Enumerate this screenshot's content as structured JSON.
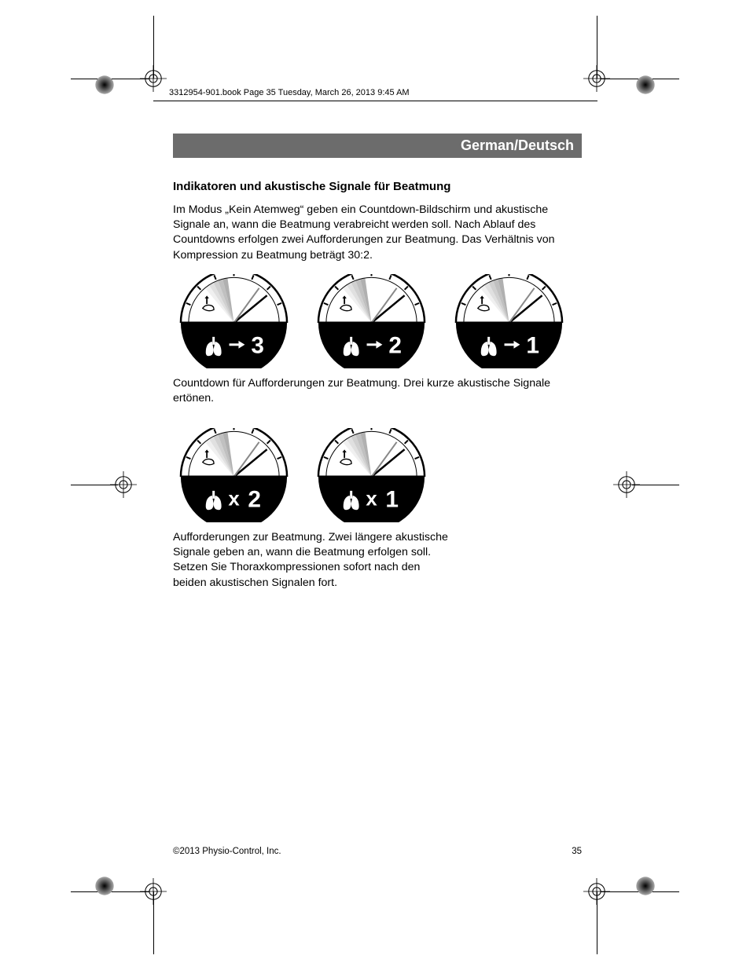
{
  "meta_header": "3312954-901.book  Page 35  Tuesday, March 26, 2013  9:45 AM",
  "language_bar": "German/Deutsch",
  "section_heading": "Indikatoren und akustische Signale für Beatmung",
  "paragraph_1": "Im Modus „Kein Atemweg“ geben ein Countdown-Bildschirm und akustische Signale an, wann die Beatmung verabreicht werden soll. Nach Ablauf des Countdowns erfolgen zwei Aufforderungen zur Beatmung. Das Verhältnis von Kompression zu Beatmung beträgt 30:2.",
  "caption_1": "Countdown für Aufforderungen zur Beatmung. Drei kurze akustische Signale ertönen.",
  "caption_2": "Aufforderungen zur Beatmung. Zwei längere akustische Signale geben an, wann die Beatmung erfolgen soll. Setzen Sie Thoraxkompressionen sofort nach den beiden akustischen Signalen fort.",
  "footer_copyright": "©2013 Physio-Control, Inc.",
  "footer_page": "35",
  "gauges_row1": [
    {
      "mode": "arrow",
      "value": "3"
    },
    {
      "mode": "arrow",
      "value": "2"
    },
    {
      "mode": "arrow",
      "value": "1"
    }
  ],
  "gauges_row2": [
    {
      "mode": "x",
      "value": "2"
    },
    {
      "mode": "x",
      "value": "1"
    }
  ],
  "colors": {
    "lang_bar_bg": "#6c6c6c",
    "lang_bar_text": "#ffffff",
    "page_bg": "#ffffff",
    "text": "#000000"
  }
}
